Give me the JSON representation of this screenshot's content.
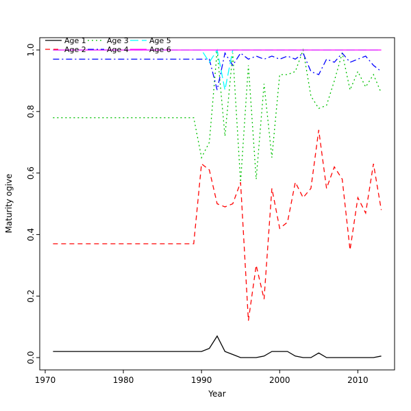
{
  "chart_data": {
    "type": "line",
    "title": "",
    "xlabel": "Year",
    "ylabel": "Maturity ogive",
    "xlim": [
      1969.3,
      2014.7
    ],
    "ylim": [
      -0.04,
      1.04
    ],
    "x_ticks": [
      1970,
      1980,
      1990,
      2000,
      2010
    ],
    "y_ticks": [
      0.0,
      0.2,
      0.4,
      0.6,
      0.8,
      1.0
    ],
    "y_tick_labels": [
      "0.0",
      "0.2",
      "0.4",
      "0.6",
      "0.8",
      "1.0"
    ],
    "grid": false,
    "legend": {
      "position": "top-left",
      "columns": 3,
      "rows": 2
    },
    "x": [
      1971,
      1972,
      1973,
      1974,
      1975,
      1976,
      1977,
      1978,
      1979,
      1980,
      1981,
      1982,
      1983,
      1984,
      1985,
      1986,
      1987,
      1988,
      1989,
      1990,
      1991,
      1992,
      1993,
      1994,
      1995,
      1996,
      1997,
      1998,
      1999,
      2000,
      2001,
      2002,
      2003,
      2004,
      2005,
      2006,
      2007,
      2008,
      2009,
      2010,
      2011,
      2012,
      2013
    ],
    "series": [
      {
        "name": "Age 1",
        "color": "#000000",
        "linestyle": "solid",
        "values": [
          0.02,
          0.02,
          0.02,
          0.02,
          0.02,
          0.02,
          0.02,
          0.02,
          0.02,
          0.02,
          0.02,
          0.02,
          0.02,
          0.02,
          0.02,
          0.02,
          0.02,
          0.02,
          0.02,
          0.02,
          0.03,
          0.07,
          0.02,
          0.01,
          0.0,
          0.0,
          0.0,
          0.005,
          0.02,
          0.02,
          0.02,
          0.005,
          0.0,
          0.0,
          0.015,
          0.0,
          0.0,
          0.0,
          0.0,
          0.0,
          0.0,
          0.0,
          0.005
        ]
      },
      {
        "name": "Age 2",
        "color": "#ff0000",
        "linestyle": "dashed",
        "values": [
          0.37,
          0.37,
          0.37,
          0.37,
          0.37,
          0.37,
          0.37,
          0.37,
          0.37,
          0.37,
          0.37,
          0.37,
          0.37,
          0.37,
          0.37,
          0.37,
          0.37,
          0.37,
          0.37,
          0.63,
          0.61,
          0.5,
          0.49,
          0.5,
          0.57,
          0.12,
          0.3,
          0.19,
          0.55,
          0.42,
          0.44,
          0.57,
          0.52,
          0.55,
          0.74,
          0.55,
          0.62,
          0.58,
          0.35,
          0.52,
          0.47,
          0.63,
          0.48
        ]
      },
      {
        "name": "Age 3",
        "color": "#00c000",
        "linestyle": "dotted",
        "values": [
          0.78,
          0.78,
          0.78,
          0.78,
          0.78,
          0.78,
          0.78,
          0.78,
          0.78,
          0.78,
          0.78,
          0.78,
          0.78,
          0.78,
          0.78,
          0.78,
          0.78,
          0.78,
          0.78,
          0.65,
          0.7,
          1.0,
          0.72,
          0.99,
          0.57,
          0.95,
          0.58,
          0.89,
          0.65,
          0.92,
          0.92,
          0.93,
          1.0,
          0.85,
          0.81,
          0.82,
          0.9,
          0.99,
          0.87,
          0.93,
          0.88,
          0.92,
          0.86
        ]
      },
      {
        "name": "Age 4",
        "color": "#0000ff",
        "linestyle": "dotdash",
        "values": [
          0.97,
          0.97,
          0.97,
          0.97,
          0.97,
          0.97,
          0.97,
          0.97,
          0.97,
          0.97,
          0.97,
          0.97,
          0.97,
          0.97,
          0.97,
          0.97,
          0.97,
          0.97,
          0.97,
          0.97,
          0.97,
          0.87,
          0.99,
          0.95,
          0.99,
          0.97,
          0.98,
          0.97,
          0.98,
          0.97,
          0.98,
          0.97,
          0.99,
          0.93,
          0.92,
          0.97,
          0.96,
          0.99,
          0.96,
          0.97,
          0.98,
          0.95,
          0.93
        ]
      },
      {
        "name": "Age 5",
        "color": "#00ffff",
        "linestyle": "longdash",
        "values": [
          1.0,
          1.0,
          1.0,
          1.0,
          1.0,
          1.0,
          1.0,
          1.0,
          1.0,
          1.0,
          1.0,
          1.0,
          1.0,
          1.0,
          1.0,
          1.0,
          1.0,
          1.0,
          1.0,
          1.0,
          0.96,
          1.0,
          0.87,
          1.0,
          1.0,
          1.0,
          1.0,
          1.0,
          1.0,
          1.0,
          1.0,
          1.0,
          1.0,
          1.0,
          1.0,
          1.0,
          1.0,
          1.0,
          1.0,
          1.0,
          1.0,
          1.0,
          1.0
        ]
      },
      {
        "name": "Age 6",
        "color": "#ff00ff",
        "linestyle": "solid",
        "values": [
          1.0,
          1.0,
          1.0,
          1.0,
          1.0,
          1.0,
          1.0,
          1.0,
          1.0,
          1.0,
          1.0,
          1.0,
          1.0,
          1.0,
          1.0,
          1.0,
          1.0,
          1.0,
          1.0,
          1.0,
          1.0,
          1.0,
          1.0,
          1.0,
          1.0,
          1.0,
          1.0,
          1.0,
          1.0,
          1.0,
          1.0,
          1.0,
          1.0,
          1.0,
          1.0,
          1.0,
          1.0,
          1.0,
          1.0,
          1.0,
          1.0,
          1.0,
          1.0
        ]
      }
    ]
  }
}
